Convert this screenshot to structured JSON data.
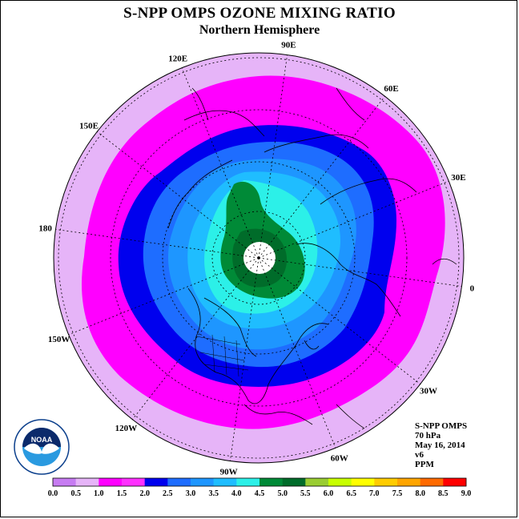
{
  "header": {
    "title": "S-NPP OMPS OZONE MIXING RATIO",
    "subtitle": "Northern Hemisphere"
  },
  "map": {
    "projection": "north-polar-stereographic",
    "center": "North Pole",
    "pole_value": "missing (white)",
    "longitude_labels": [
      {
        "text": "90E",
        "deg": 90
      },
      {
        "text": "60E",
        "deg": 60
      },
      {
        "text": "30E",
        "deg": 30
      },
      {
        "text": "0",
        "deg": 0
      },
      {
        "text": "30W",
        "deg": -30
      },
      {
        "text": "60W",
        "deg": -60
      },
      {
        "text": "90W",
        "deg": -90
      },
      {
        "text": "120W",
        "deg": -120
      },
      {
        "text": "150W",
        "deg": -150
      },
      {
        "text": "180",
        "deg": 180
      },
      {
        "text": "150E",
        "deg": 150
      },
      {
        "text": "120E",
        "deg": 120
      }
    ],
    "latitude_circles": [
      70,
      50,
      30,
      10
    ]
  },
  "colorbar": {
    "ticks": [
      "0.0",
      "0.5",
      "1.0",
      "1.5",
      "2.0",
      "2.5",
      "3.0",
      "3.5",
      "4.0",
      "4.5",
      "5.0",
      "5.5",
      "6.0",
      "6.5",
      "7.0",
      "7.5",
      "8.0",
      "8.5",
      "9.0"
    ],
    "colors": [
      "#c77cf2",
      "#e6b4f8",
      "#ff00ff",
      "#ff30ff",
      "#0000ee",
      "#1e6dff",
      "#1e96ff",
      "#1fbdff",
      "#2cf0e8",
      "#008a37",
      "#006c2a",
      "#9acd32",
      "#c8ff00",
      "#ffff00",
      "#ffcc00",
      "#ffa500",
      "#ff6a00",
      "#ff0000",
      "#8b5a2b"
    ]
  },
  "info": {
    "instrument": "S-NPP OMPS",
    "level": "70 hPa",
    "date": "May 16, 2014",
    "version": "v6",
    "units": "PPM"
  },
  "logo": {
    "text": "NOAA",
    "ring_text": "NATIONAL OCEANIC AND ATMOSPHERIC ADMINISTRATION · U.S. DEPARTMENT OF COMMERCE"
  }
}
